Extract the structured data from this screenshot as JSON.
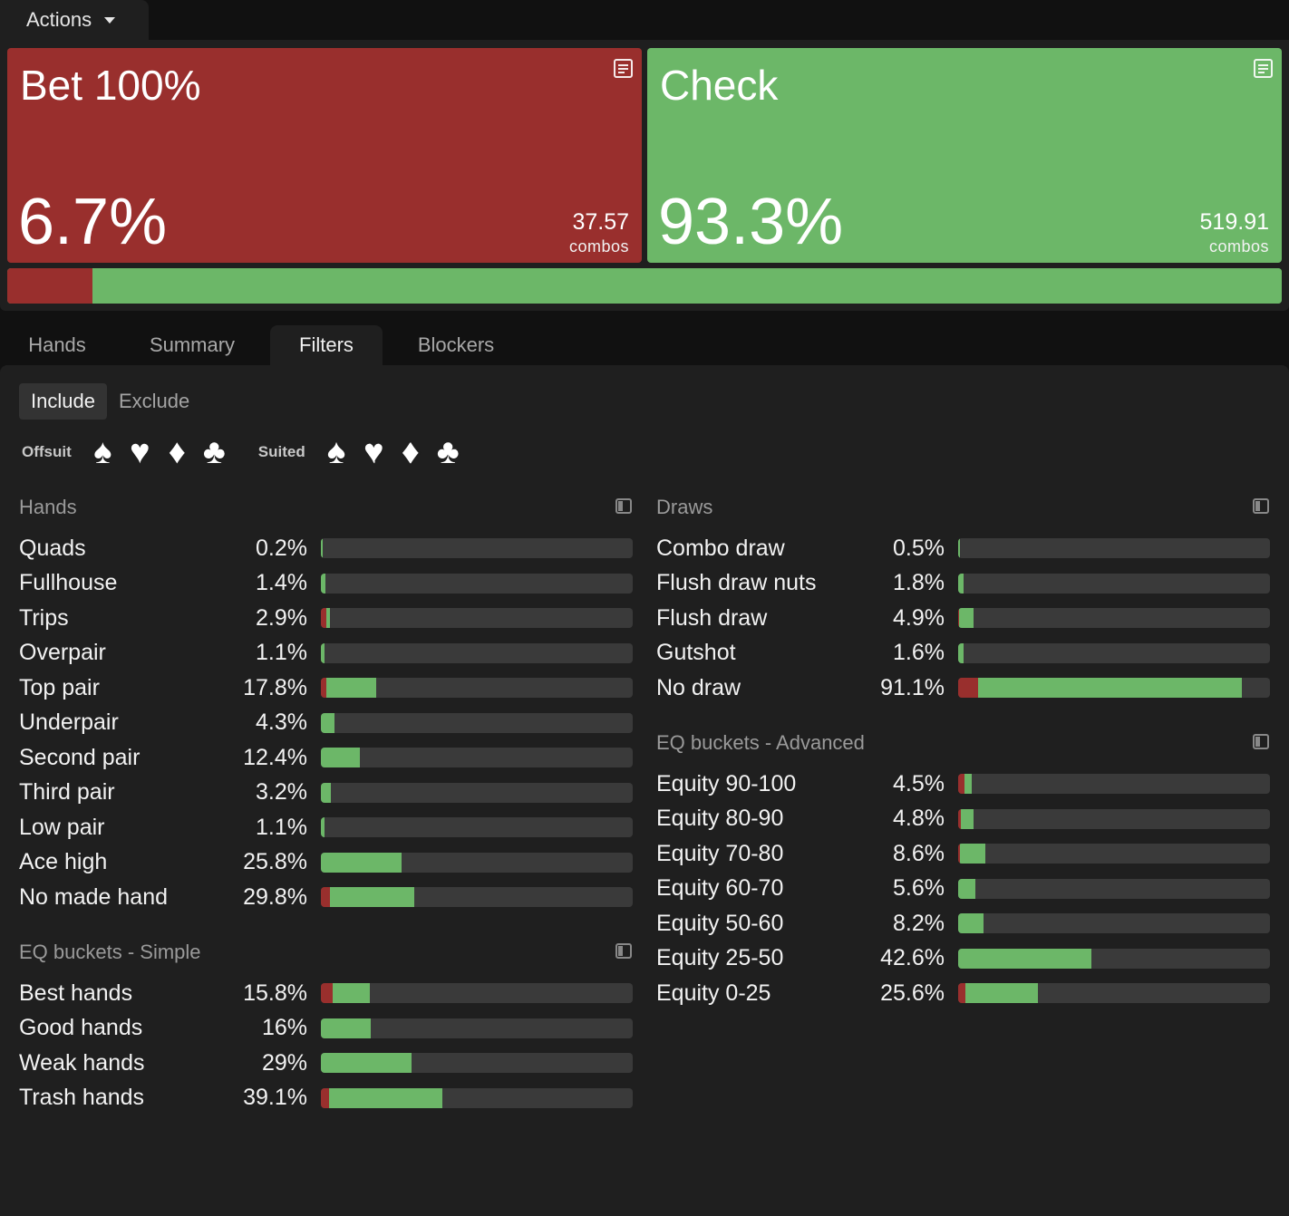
{
  "actions_tab": {
    "label": "Actions",
    "icon": "caret-down-icon"
  },
  "colors": {
    "bet": "#992f2d",
    "check": "#6cb768",
    "bar_bg": "#3a3a3a"
  },
  "actions": [
    {
      "name": "Bet 100%",
      "pct": "6.7%",
      "combos": "37.57",
      "combos_label": "combos",
      "frac": 0.067
    },
    {
      "name": "Check",
      "pct": "93.3%",
      "combos": "519.91",
      "combos_label": "combos",
      "frac": 0.933
    }
  ],
  "tabs": [
    "Hands",
    "Summary",
    "Filters",
    "Blockers"
  ],
  "active_tab": "Filters",
  "mode": {
    "include": "Include",
    "exclude": "Exclude",
    "selected": "Include"
  },
  "suits": {
    "offsuit_label": "Offsuit",
    "suited_label": "Suited",
    "symbols": [
      "♠",
      "♥",
      "♦",
      "♣"
    ]
  },
  "sections": {
    "hands": {
      "title": "Hands",
      "rows": [
        {
          "label": "Quads",
          "value": "0.2%",
          "fill": 0.2,
          "bet": 0.0,
          "check": 1.0
        },
        {
          "label": "Fullhouse",
          "value": "1.4%",
          "fill": 1.4,
          "bet": 0.0,
          "check": 1.0
        },
        {
          "label": "Trips",
          "value": "2.9%",
          "fill": 2.9,
          "bet": 0.65,
          "check": 0.35
        },
        {
          "label": "Overpair",
          "value": "1.1%",
          "fill": 1.1,
          "bet": 0.1,
          "check": 0.9
        },
        {
          "label": "Top pair",
          "value": "17.8%",
          "fill": 17.8,
          "bet": 0.09,
          "check": 0.91
        },
        {
          "label": "Underpair",
          "value": "4.3%",
          "fill": 4.3,
          "bet": 0.0,
          "check": 1.0
        },
        {
          "label": "Second pair",
          "value": "12.4%",
          "fill": 12.4,
          "bet": 0.0,
          "check": 1.0
        },
        {
          "label": "Third pair",
          "value": "3.2%",
          "fill": 3.2,
          "bet": 0.0,
          "check": 1.0
        },
        {
          "label": "Low pair",
          "value": "1.1%",
          "fill": 1.1,
          "bet": 0.0,
          "check": 1.0
        },
        {
          "label": "Ace high",
          "value": "25.8%",
          "fill": 25.8,
          "bet": 0.0,
          "check": 1.0
        },
        {
          "label": "No made hand",
          "value": "29.8%",
          "fill": 29.8,
          "bet": 0.1,
          "check": 0.9
        }
      ]
    },
    "eq_simple": {
      "title": "EQ buckets - Simple",
      "rows": [
        {
          "label": "Best hands",
          "value": "15.8%",
          "fill": 15.8,
          "bet": 0.24,
          "check": 0.76
        },
        {
          "label": "Good hands",
          "value": "16%",
          "fill": 16.0,
          "bet": 0.0,
          "check": 1.0
        },
        {
          "label": "Weak hands",
          "value": "29%",
          "fill": 29.0,
          "bet": 0.0,
          "check": 1.0
        },
        {
          "label": "Trash hands",
          "value": "39.1%",
          "fill": 39.1,
          "bet": 0.07,
          "check": 0.93
        }
      ]
    },
    "draws": {
      "title": "Draws",
      "rows": [
        {
          "label": "Combo draw",
          "value": "0.5%",
          "fill": 0.5,
          "bet": 0.0,
          "check": 1.0
        },
        {
          "label": "Flush draw nuts",
          "value": "1.8%",
          "fill": 1.8,
          "bet": 0.0,
          "check": 1.0
        },
        {
          "label": "Flush draw",
          "value": "4.9%",
          "fill": 4.9,
          "bet": 0.05,
          "check": 0.95
        },
        {
          "label": "Gutshot",
          "value": "1.6%",
          "fill": 1.6,
          "bet": 0.0,
          "check": 1.0
        },
        {
          "label": "No draw",
          "value": "91.1%",
          "fill": 91.1,
          "bet": 0.07,
          "check": 0.93
        }
      ]
    },
    "eq_advanced": {
      "title": "EQ buckets - Advanced",
      "rows": [
        {
          "label": "Equity 90-100",
          "value": "4.5%",
          "fill": 4.5,
          "bet": 0.44,
          "check": 0.56
        },
        {
          "label": "Equity 80-90",
          "value": "4.8%",
          "fill": 4.8,
          "bet": 0.2,
          "check": 0.8
        },
        {
          "label": "Equity 70-80",
          "value": "8.6%",
          "fill": 8.6,
          "bet": 0.07,
          "check": 0.93
        },
        {
          "label": "Equity 60-70",
          "value": "5.6%",
          "fill": 5.6,
          "bet": 0.0,
          "check": 1.0
        },
        {
          "label": "Equity 50-60",
          "value": "8.2%",
          "fill": 8.2,
          "bet": 0.0,
          "check": 1.0
        },
        {
          "label": "Equity 25-50",
          "value": "42.6%",
          "fill": 42.6,
          "bet": 0.0,
          "check": 1.0
        },
        {
          "label": "Equity 0-25",
          "value": "25.6%",
          "fill": 25.6,
          "bet": 0.09,
          "check": 0.91
        }
      ]
    }
  }
}
